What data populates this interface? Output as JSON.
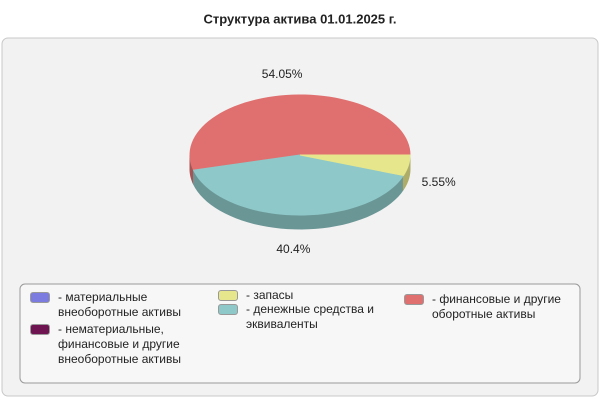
{
  "chart_data": {
    "type": "pie3d",
    "title": "Структура актива 01.01.2025 г.",
    "categories": [
      "- материальные внеоборотные активы",
      "- нематериальные, финансовые и другие внеоборотные активы",
      "- запасы",
      "- денежные средства и эквиваленты",
      "- финансовые и другие оборотные активы"
    ],
    "values": [
      0,
      0,
      5.55,
      40.4,
      54.05
    ],
    "value_labels": [
      null,
      null,
      "5.55%",
      "40.4%",
      "54.05%"
    ],
    "colors": [
      "#7b7be0",
      "#6e1450",
      "#e6e68c",
      "#8ec8c8",
      "#e07070"
    ]
  }
}
